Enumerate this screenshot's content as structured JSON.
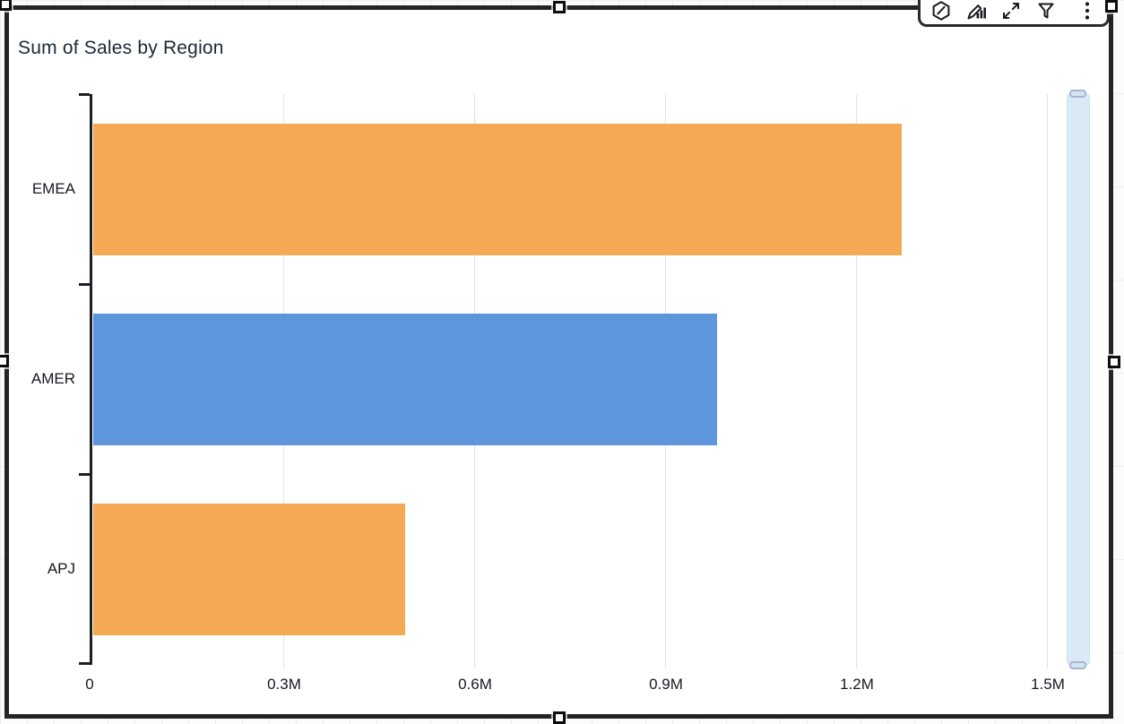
{
  "chart_data": {
    "type": "bar",
    "orientation": "horizontal",
    "title": "Sum of Sales by Region",
    "categories": [
      "EMEA",
      "AMER",
      "APJ"
    ],
    "series": [
      {
        "name": "Sum of Sales",
        "values_millions": [
          1.27,
          0.98,
          0.49
        ]
      }
    ],
    "bar_colors": [
      "#F4A952",
      "#5E96DB",
      "#F4A952"
    ],
    "x_ticks": [
      {
        "label": "0",
        "value_m": 0
      },
      {
        "label": "0.3M",
        "value_m": 0.3
      },
      {
        "label": "0.6M",
        "value_m": 0.6
      },
      {
        "label": "0.9M",
        "value_m": 0.9
      },
      {
        "label": "1.2M",
        "value_m": 1.2
      },
      {
        "label": "1.5M",
        "value_m": 1.5
      }
    ],
    "xlim_millions": [
      0,
      1.6
    ],
    "grid": "vertical-only",
    "legend": "none"
  },
  "toolbar": {
    "icons": [
      {
        "name": "alerts-icon"
      },
      {
        "name": "edit-visual-icon"
      },
      {
        "name": "maximize-icon"
      },
      {
        "name": "filter-icon"
      },
      {
        "name": "menu-options-icon"
      }
    ]
  },
  "colors": {
    "bar_orange": "#F4A952",
    "bar_blue": "#5E96DB",
    "axis_text": "#16191F",
    "gridline": "#E3E3E6",
    "selection_border": "#242424",
    "scrollbar_fill": "#D9E9F5",
    "scrollbar_handle_border": "#A6B7CF"
  }
}
